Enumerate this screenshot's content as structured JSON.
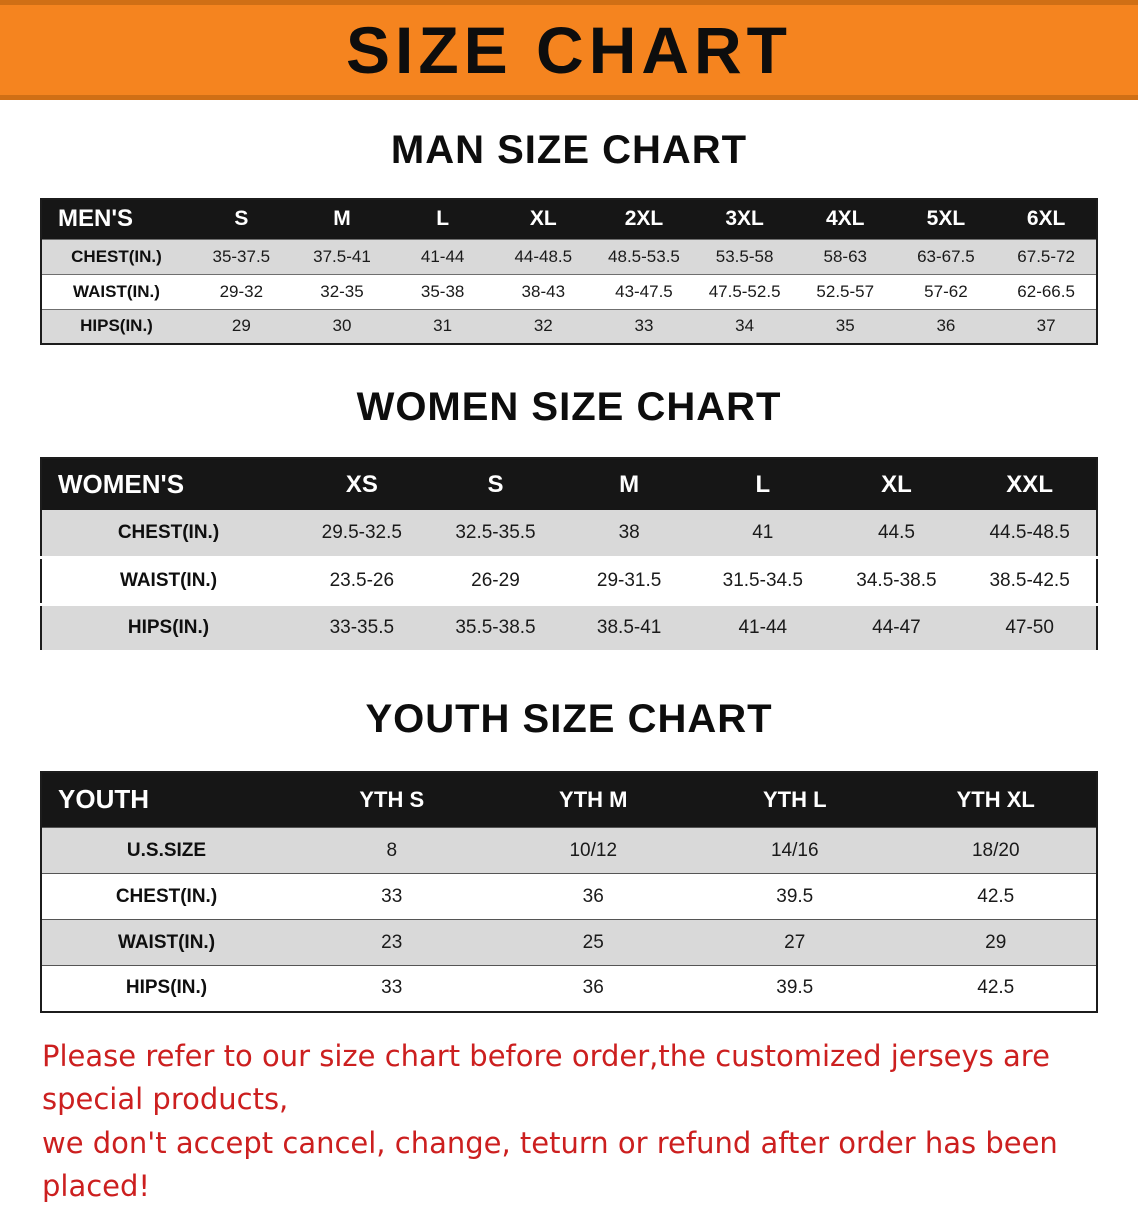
{
  "banner": {
    "title": "SIZE CHART"
  },
  "sections": [
    {
      "heading": "MAN SIZE CHART",
      "table": {
        "header": [
          "MEN'S",
          "S",
          "M",
          "L",
          "XL",
          "2XL",
          "3XL",
          "4XL",
          "5XL",
          "6XL"
        ],
        "rows": [
          [
            "CHEST(IN.)",
            "35-37.5",
            "37.5-41",
            "41-44",
            "44-48.5",
            "48.5-53.5",
            "53.5-58",
            "58-63",
            "63-67.5",
            "67.5-72"
          ],
          [
            "WAIST(IN.)",
            "29-32",
            "32-35",
            "35-38",
            "38-43",
            "43-47.5",
            "47.5-52.5",
            "52.5-57",
            "57-62",
            "62-66.5"
          ],
          [
            "HIPS(IN.)",
            "29",
            "30",
            "31",
            "32",
            "33",
            "34",
            "35",
            "36",
            "37"
          ]
        ]
      }
    },
    {
      "heading": "WOMEN SIZE CHART",
      "table": {
        "header": [
          "WOMEN'S",
          "XS",
          "S",
          "M",
          "L",
          "XL",
          "XXL"
        ],
        "rows": [
          [
            "CHEST(IN.)",
            "29.5-32.5",
            "32.5-35.5",
            "38",
            "41",
            "44.5",
            "44.5-48.5"
          ],
          [
            "WAIST(IN.)",
            "23.5-26",
            "26-29",
            "29-31.5",
            "31.5-34.5",
            "34.5-38.5",
            "38.5-42.5"
          ],
          [
            "HIPS(IN.)",
            "33-35.5",
            "35.5-38.5",
            "38.5-41",
            "41-44",
            "44-47",
            "47-50"
          ]
        ]
      }
    },
    {
      "heading": "YOUTH SIZE CHART",
      "table": {
        "header": [
          "YOUTH",
          "YTH S",
          "YTH M",
          "YTH L",
          "YTH XL"
        ],
        "rows": [
          [
            "U.S.SIZE",
            "8",
            "10/12",
            "14/16",
            "18/20"
          ],
          [
            "CHEST(IN.)",
            "33",
            "36",
            "39.5",
            "42.5"
          ],
          [
            "WAIST(IN.)",
            "23",
            "25",
            "27",
            "29"
          ],
          [
            "HIPS(IN.)",
            "33",
            "36",
            "39.5",
            "42.5"
          ]
        ]
      }
    }
  ],
  "disclaimer": {
    "line1": "Please refer to our size chart before order,the customized jerseys are special products,",
    "line2": "we don't accept cancel, change, teturn or refund after order has been placed!"
  },
  "colors": {
    "banner_bg": "#f5841f",
    "banner_border": "#d06f15",
    "table_header_bg": "#161616",
    "table_row_gray": "#d9d9d9",
    "disclaimer_red": "#cc1f1f"
  }
}
